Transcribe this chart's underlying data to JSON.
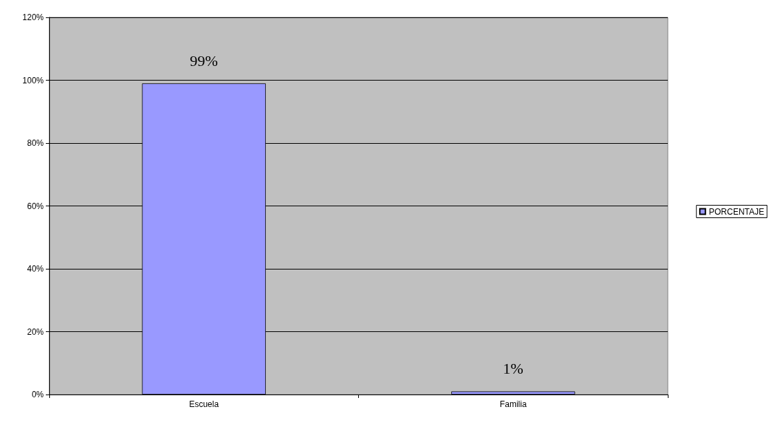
{
  "chart_data": {
    "type": "bar",
    "categories": [
      "Escuela",
      "Familia"
    ],
    "series": [
      {
        "name": "PORCENTAJE",
        "color": "#9999ff",
        "values": [
          99,
          1
        ],
        "value_labels": [
          "99%",
          "1%"
        ]
      }
    ],
    "ylim": [
      0,
      120
    ],
    "yticks": [
      {
        "value": 0,
        "label": "0%"
      },
      {
        "value": 20,
        "label": "20%"
      },
      {
        "value": 40,
        "label": "40%"
      },
      {
        "value": 60,
        "label": "60%"
      },
      {
        "value": 80,
        "label": "80%"
      },
      {
        "value": 100,
        "label": "100%"
      },
      {
        "value": 120,
        "label": "120%"
      }
    ],
    "grid": "y",
    "legend": "right"
  }
}
